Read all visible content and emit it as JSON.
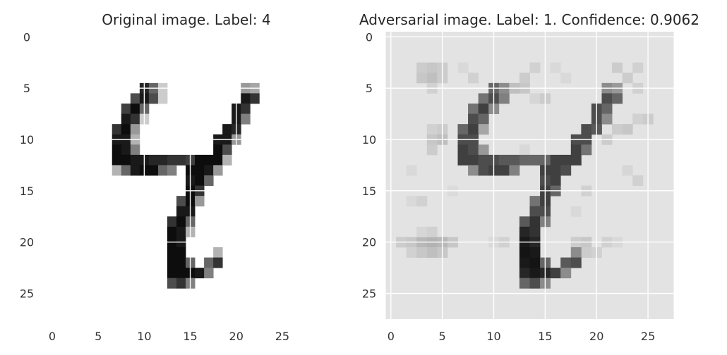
{
  "chart_data": [
    {
      "type": "heatmap",
      "title": "Original image. Label: 4",
      "xticks": [
        "0",
        "5",
        "10",
        "15",
        "20",
        "25"
      ],
      "yticks": [
        "0",
        "5",
        "10",
        "15",
        "20",
        "25"
      ],
      "xlim": [
        -0.5,
        27.5
      ],
      "ylim": [
        27.5,
        -0.5
      ],
      "colormap": "gray_r",
      "grid": true,
      "background": "#ffffff",
      "pixels": [
        [
          10,
          5,
          0.85
        ],
        [
          11,
          5,
          0.6
        ],
        [
          12,
          5,
          0.2
        ],
        [
          9,
          6,
          0.7
        ],
        [
          10,
          6,
          0.9
        ],
        [
          11,
          6,
          0.7
        ],
        [
          12,
          6,
          0.2
        ],
        [
          8,
          7,
          0.75
        ],
        [
          9,
          7,
          0.95
        ],
        [
          10,
          7,
          0.6
        ],
        [
          8,
          8,
          0.9
        ],
        [
          9,
          8,
          0.8
        ],
        [
          10,
          8,
          0.2
        ],
        [
          7,
          9,
          0.8
        ],
        [
          8,
          9,
          0.95
        ],
        [
          9,
          9,
          0.4
        ],
        [
          7,
          10,
          0.9
        ],
        [
          8,
          10,
          0.9
        ],
        [
          9,
          10,
          0.3
        ],
        [
          7,
          11,
          0.95
        ],
        [
          8,
          11,
          0.9
        ],
        [
          9,
          11,
          0.5
        ],
        [
          7,
          12,
          0.95
        ],
        [
          8,
          12,
          0.95
        ],
        [
          9,
          12,
          0.9
        ],
        [
          10,
          12,
          0.9
        ],
        [
          11,
          12,
          0.85
        ],
        [
          12,
          12,
          0.85
        ],
        [
          13,
          12,
          0.8
        ],
        [
          14,
          12,
          0.8
        ],
        [
          15,
          12,
          0.75
        ],
        [
          7,
          13,
          0.3
        ],
        [
          8,
          13,
          0.6
        ],
        [
          9,
          13,
          0.9
        ],
        [
          10,
          13,
          0.95
        ],
        [
          11,
          13,
          0.95
        ],
        [
          12,
          13,
          0.6
        ],
        [
          13,
          13,
          0.5
        ],
        [
          21,
          5,
          0.4
        ],
        [
          22,
          5,
          0.35
        ],
        [
          21,
          6,
          0.9
        ],
        [
          22,
          6,
          0.8
        ],
        [
          20,
          7,
          0.9
        ],
        [
          21,
          7,
          0.8
        ],
        [
          20,
          8,
          0.9
        ],
        [
          21,
          8,
          0.5
        ],
        [
          19,
          9,
          0.9
        ],
        [
          20,
          9,
          0.85
        ],
        [
          18,
          10,
          0.9
        ],
        [
          19,
          10,
          0.9
        ],
        [
          20,
          10,
          0.4
        ],
        [
          18,
          11,
          0.95
        ],
        [
          19,
          11,
          0.7
        ],
        [
          16,
          12,
          0.95
        ],
        [
          17,
          12,
          0.95
        ],
        [
          18,
          12,
          0.95
        ],
        [
          19,
          12,
          0.3
        ],
        [
          15,
          13,
          0.95
        ],
        [
          16,
          13,
          0.95
        ],
        [
          17,
          13,
          0.9
        ],
        [
          18,
          13,
          0.4
        ],
        [
          15,
          14,
          0.9
        ],
        [
          16,
          14,
          0.95
        ],
        [
          17,
          14,
          0.6
        ],
        [
          15,
          15,
          0.95
        ],
        [
          16,
          15,
          0.8
        ],
        [
          14,
          16,
          0.7
        ],
        [
          15,
          16,
          0.95
        ],
        [
          16,
          16,
          0.4
        ],
        [
          14,
          17,
          0.9
        ],
        [
          15,
          17,
          0.9
        ],
        [
          13,
          18,
          0.8
        ],
        [
          14,
          18,
          0.95
        ],
        [
          15,
          18,
          0.6
        ],
        [
          13,
          19,
          0.95
        ],
        [
          14,
          19,
          0.9
        ],
        [
          15,
          19,
          0.3
        ],
        [
          13,
          20,
          0.95
        ],
        [
          14,
          20,
          0.9
        ],
        [
          13,
          21,
          0.95
        ],
        [
          14,
          21,
          0.95
        ],
        [
          18,
          21,
          0.3
        ],
        [
          13,
          22,
          0.95
        ],
        [
          14,
          22,
          0.95
        ],
        [
          15,
          22,
          0.6
        ],
        [
          17,
          22,
          0.6
        ],
        [
          18,
          22,
          0.8
        ],
        [
          13,
          23,
          0.95
        ],
        [
          14,
          23,
          0.95
        ],
        [
          15,
          23,
          0.95
        ],
        [
          16,
          23,
          0.9
        ],
        [
          17,
          23,
          0.5
        ],
        [
          13,
          24,
          0.7
        ],
        [
          14,
          24,
          0.8
        ],
        [
          15,
          24,
          0.5
        ]
      ]
    },
    {
      "type": "heatmap",
      "title": "Adversarial image. Label: 1. Confidence: 0.9062",
      "xticks": [
        "0",
        "5",
        "10",
        "15",
        "20",
        "25"
      ],
      "yticks": [
        "0",
        "5",
        "10",
        "15",
        "20",
        "25"
      ],
      "xlim": [
        -0.5,
        27.5
      ],
      "ylim": [
        27.5,
        -0.5
      ],
      "colormap": "gray_r",
      "grid": true,
      "background": "#e3e3e3",
      "pixels": [
        [
          3,
          3,
          0.2
        ],
        [
          4,
          3,
          0.22
        ],
        [
          5,
          3,
          0.2
        ],
        [
          7,
          3,
          0.15
        ],
        [
          14,
          3,
          0.18
        ],
        [
          16,
          3,
          0.15
        ],
        [
          22,
          3,
          0.2
        ],
        [
          24,
          3,
          0.18
        ],
        [
          3,
          4,
          0.22
        ],
        [
          4,
          4,
          0.25
        ],
        [
          5,
          4,
          0.2
        ],
        [
          8,
          4,
          0.18
        ],
        [
          13,
          4,
          0.2
        ],
        [
          17,
          4,
          0.15
        ],
        [
          23,
          4,
          0.2
        ],
        [
          4,
          5,
          0.18
        ],
        [
          13,
          5,
          0.22
        ],
        [
          24,
          5,
          0.18
        ],
        [
          14,
          6,
          0.16
        ],
        [
          15,
          6,
          0.2
        ],
        [
          24,
          8,
          0.18
        ],
        [
          25,
          8,
          0.2
        ],
        [
          22,
          9,
          0.2
        ],
        [
          23,
          9,
          0.22
        ],
        [
          4,
          9,
          0.18
        ],
        [
          5,
          9,
          0.2
        ],
        [
          4,
          10,
          0.22
        ],
        [
          5,
          10,
          0.25
        ],
        [
          21,
          10,
          0.2
        ],
        [
          4,
          11,
          0.2
        ],
        [
          13,
          11,
          0.15
        ],
        [
          2,
          13,
          0.15
        ],
        [
          23,
          13,
          0.16
        ],
        [
          24,
          14,
          0.18
        ],
        [
          6,
          15,
          0.14
        ],
        [
          19,
          15,
          0.18
        ],
        [
          2,
          16,
          0.15
        ],
        [
          3,
          16,
          0.18
        ],
        [
          18,
          17,
          0.15
        ],
        [
          1,
          20,
          0.2
        ],
        [
          2,
          20,
          0.22
        ],
        [
          3,
          20,
          0.28
        ],
        [
          4,
          20,
          0.3
        ],
        [
          5,
          20,
          0.28
        ],
        [
          6,
          20,
          0.22
        ],
        [
          10,
          20,
          0.15
        ],
        [
          11,
          20,
          0.18
        ],
        [
          18,
          20,
          0.2
        ],
        [
          19,
          20,
          0.22
        ],
        [
          21,
          20,
          0.18
        ],
        [
          22,
          20,
          0.15
        ],
        [
          2,
          21,
          0.18
        ],
        [
          3,
          21,
          0.22
        ],
        [
          4,
          21,
          0.25
        ],
        [
          5,
          21,
          0.22
        ],
        [
          19,
          21,
          0.2
        ],
        [
          20,
          21,
          0.18
        ],
        [
          3,
          19,
          0.16
        ],
        [
          4,
          19,
          0.18
        ],
        [
          10,
          5,
          0.6
        ],
        [
          11,
          5,
          0.45
        ],
        [
          12,
          5,
          0.25
        ],
        [
          9,
          6,
          0.55
        ],
        [
          10,
          6,
          0.7
        ],
        [
          11,
          6,
          0.5
        ],
        [
          8,
          7,
          0.55
        ],
        [
          9,
          7,
          0.75
        ],
        [
          10,
          7,
          0.45
        ],
        [
          8,
          8,
          0.7
        ],
        [
          9,
          8,
          0.6
        ],
        [
          7,
          9,
          0.6
        ],
        [
          8,
          9,
          0.75
        ],
        [
          9,
          9,
          0.35
        ],
        [
          7,
          10,
          0.7
        ],
        [
          8,
          10,
          0.7
        ],
        [
          7,
          11,
          0.75
        ],
        [
          8,
          11,
          0.7
        ],
        [
          9,
          11,
          0.4
        ],
        [
          7,
          12,
          0.75
        ],
        [
          8,
          12,
          0.75
        ],
        [
          9,
          12,
          0.7
        ],
        [
          10,
          12,
          0.7
        ],
        [
          11,
          12,
          0.65
        ],
        [
          12,
          12,
          0.65
        ],
        [
          13,
          12,
          0.6
        ],
        [
          14,
          12,
          0.6
        ],
        [
          15,
          12,
          0.6
        ],
        [
          8,
          13,
          0.45
        ],
        [
          9,
          13,
          0.7
        ],
        [
          10,
          13,
          0.75
        ],
        [
          11,
          13,
          0.75
        ],
        [
          12,
          13,
          0.5
        ],
        [
          21,
          5,
          0.45
        ],
        [
          22,
          5,
          0.4
        ],
        [
          21,
          6,
          0.7
        ],
        [
          22,
          6,
          0.6
        ],
        [
          20,
          7,
          0.7
        ],
        [
          21,
          7,
          0.6
        ],
        [
          20,
          8,
          0.7
        ],
        [
          21,
          8,
          0.45
        ],
        [
          19,
          9,
          0.7
        ],
        [
          20,
          9,
          0.65
        ],
        [
          18,
          10,
          0.7
        ],
        [
          19,
          10,
          0.7
        ],
        [
          18,
          11,
          0.75
        ],
        [
          19,
          11,
          0.55
        ],
        [
          16,
          12,
          0.75
        ],
        [
          17,
          12,
          0.75
        ],
        [
          18,
          12,
          0.75
        ],
        [
          15,
          13,
          0.75
        ],
        [
          16,
          13,
          0.75
        ],
        [
          17,
          13,
          0.7
        ],
        [
          15,
          14,
          0.7
        ],
        [
          16,
          14,
          0.75
        ],
        [
          15,
          15,
          0.75
        ],
        [
          16,
          15,
          0.6
        ],
        [
          14,
          16,
          0.55
        ],
        [
          15,
          16,
          0.75
        ],
        [
          14,
          17,
          0.7
        ],
        [
          15,
          17,
          0.7
        ],
        [
          13,
          18,
          0.65
        ],
        [
          14,
          18,
          0.8
        ],
        [
          15,
          18,
          0.5
        ],
        [
          13,
          19,
          0.85
        ],
        [
          14,
          19,
          0.8
        ],
        [
          13,
          20,
          0.9
        ],
        [
          14,
          20,
          0.85
        ],
        [
          13,
          21,
          0.92
        ],
        [
          14,
          21,
          0.9
        ],
        [
          18,
          21,
          0.45
        ],
        [
          13,
          22,
          0.9
        ],
        [
          14,
          22,
          0.92
        ],
        [
          15,
          22,
          0.6
        ],
        [
          17,
          22,
          0.65
        ],
        [
          18,
          22,
          0.7
        ],
        [
          13,
          23,
          0.85
        ],
        [
          14,
          23,
          0.9
        ],
        [
          15,
          23,
          0.85
        ],
        [
          16,
          23,
          0.75
        ],
        [
          17,
          23,
          0.45
        ],
        [
          13,
          24,
          0.6
        ],
        [
          14,
          24,
          0.7
        ],
        [
          15,
          24,
          0.45
        ]
      ]
    }
  ]
}
